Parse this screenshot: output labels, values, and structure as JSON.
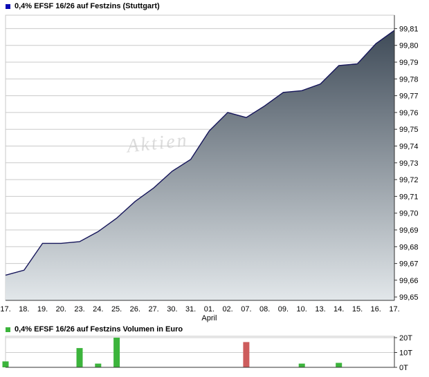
{
  "price_chart": {
    "title": "0,4% EFSF 16/26 auf Festzins (Stuttgart)",
    "legend_color": "#0a0ab4",
    "watermark": "Aktien"
  },
  "volume_chart": {
    "title": "0,4% EFSF 16/26 auf Festzins Volumen in Euro",
    "legend_color": "#3cb43c"
  },
  "chart_data": [
    {
      "type": "area",
      "title": "0,4% EFSF 16/26 auf Festzins (Stuttgart)",
      "x_labels": [
        "17.",
        "18.",
        "19.",
        "20.",
        "23.",
        "24.",
        "25.",
        "26.",
        "27.",
        "30.",
        "31.",
        "01.",
        "02.",
        "07.",
        "08.",
        "09.",
        "10.",
        "13.",
        "14.",
        "15.",
        "16.",
        "17."
      ],
      "values": [
        99.663,
        99.666,
        99.682,
        99.682,
        99.683,
        99.689,
        99.697,
        99.707,
        99.715,
        99.725,
        99.732,
        99.749,
        99.76,
        99.757,
        99.764,
        99.772,
        99.773,
        99.777,
        99.788,
        99.789,
        99.801,
        99.809
      ],
      "ylim": [
        99.648,
        99.818
      ],
      "ytick_labels": [
        "99,81",
        "99,80",
        "99,79",
        "99,78",
        "99,77",
        "99,76",
        "99,75",
        "99,74",
        "99,73",
        "99,72",
        "99,71",
        "99,70",
        "99,69",
        "99,68",
        "99,67",
        "99,66",
        "99,65"
      ],
      "month_label": "April",
      "month_index": 11,
      "xlabel": "",
      "ylabel": "",
      "grid": true,
      "line_color": "#15155a",
      "fill_top": "#3f4b58",
      "fill_bottom": "#e2e7ea",
      "grid_color": "#c9c9c9"
    },
    {
      "type": "bar",
      "title": "0,4% EFSF 16/26 auf Festzins Volumen in Euro",
      "x_labels": [
        "17.",
        "18.",
        "19.",
        "20.",
        "23.",
        "24.",
        "25.",
        "26.",
        "27.",
        "30.",
        "31.",
        "01.",
        "02.",
        "07.",
        "08.",
        "09.",
        "10.",
        "13.",
        "14.",
        "15.",
        "16.",
        "17."
      ],
      "values": [
        4000,
        0,
        0,
        0,
        13000,
        2500,
        20000,
        0,
        0,
        0,
        0,
        0,
        0,
        17000,
        0,
        0,
        2500,
        0,
        3000,
        0,
        0,
        0
      ],
      "directions": [
        "up",
        "",
        "",
        "",
        "up",
        "up",
        "up",
        "",
        "",
        "",
        "",
        "",
        "",
        "down",
        "",
        "",
        "up",
        "",
        "up",
        "",
        "",
        ""
      ],
      "ytick_labels": [
        "20T",
        "10T",
        "0T"
      ],
      "ylim": [
        0,
        20000
      ],
      "unit": "Euro",
      "up_color": "#3cb43c",
      "down_color": "#cd5c5c"
    }
  ]
}
